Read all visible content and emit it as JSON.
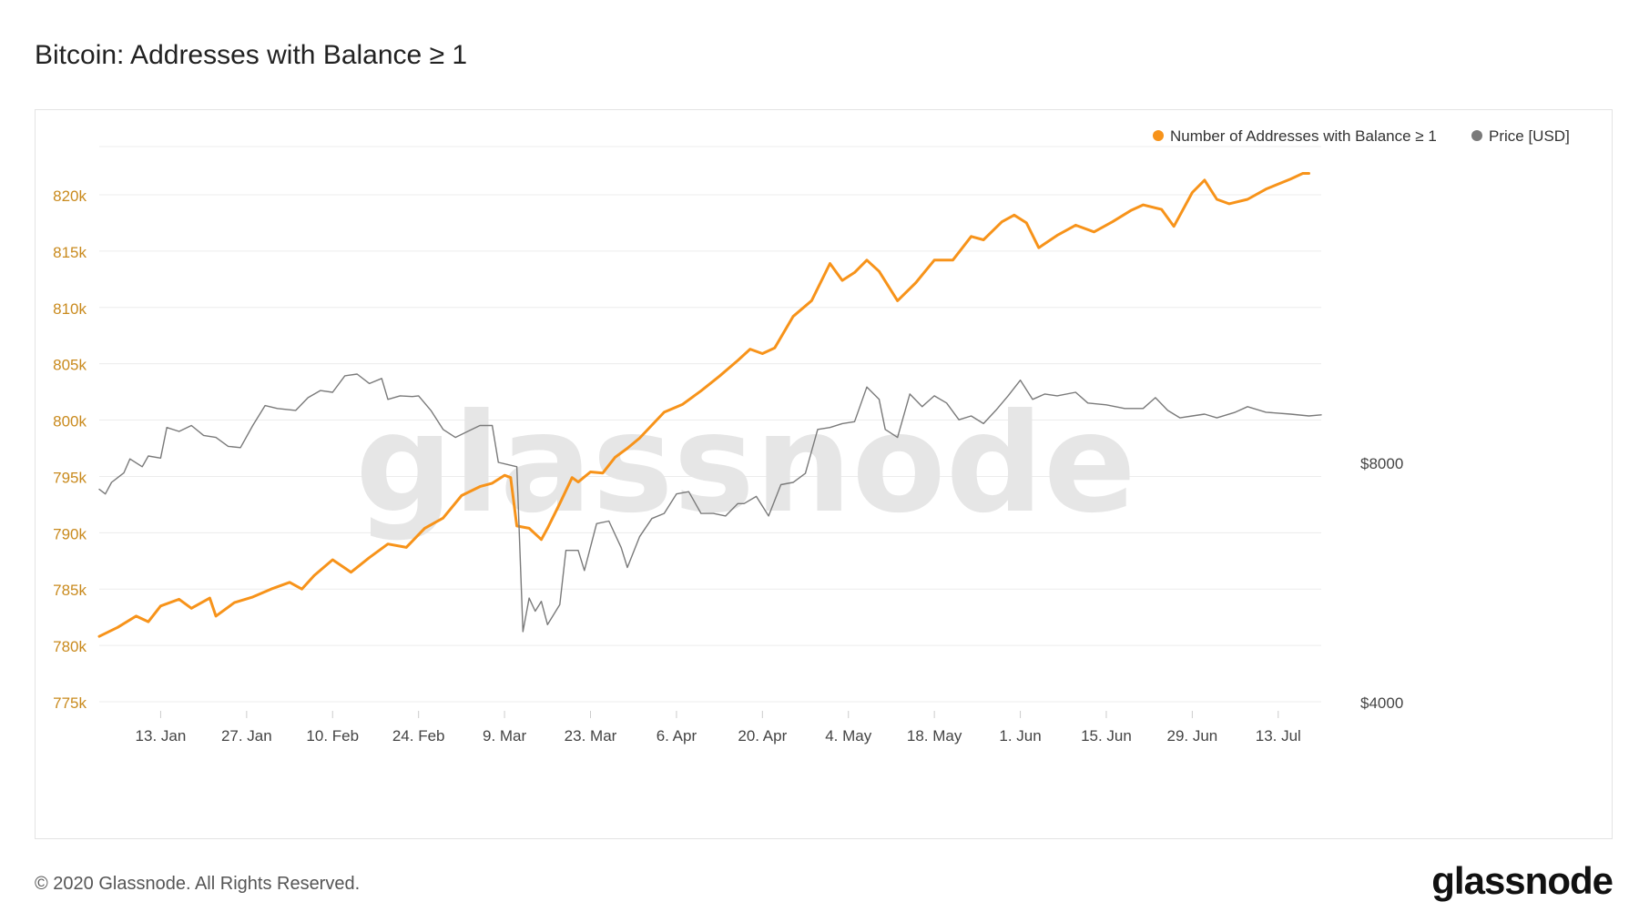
{
  "title": "Bitcoin: Addresses with Balance ≥ 1",
  "footer": {
    "copyright": "© 2020 Glassnode. All Rights Reserved.",
    "brand": "glassnode"
  },
  "watermark": "glassnode",
  "colors": {
    "addresses": "#f7931a",
    "price": "#7a7a7a",
    "left_axis_text": "#c98a1d",
    "grid": "#ececec",
    "watermark": "#e6e6e6"
  },
  "chart_data": {
    "type": "line",
    "title": "Bitcoin: Addresses with Balance ≥ 1",
    "x_range": [
      "2020-01-03",
      "2020-07-20"
    ],
    "x_ticks": [
      {
        "date": "2020-01-13",
        "label": "13. Jan"
      },
      {
        "date": "2020-01-27",
        "label": "27. Jan"
      },
      {
        "date": "2020-02-10",
        "label": "10. Feb"
      },
      {
        "date": "2020-02-24",
        "label": "24. Feb"
      },
      {
        "date": "2020-03-09",
        "label": "9. Mar"
      },
      {
        "date": "2020-03-23",
        "label": "23. Mar"
      },
      {
        "date": "2020-04-06",
        "label": "6. Apr"
      },
      {
        "date": "2020-04-20",
        "label": "20. Apr"
      },
      {
        "date": "2020-05-04",
        "label": "4. May"
      },
      {
        "date": "2020-05-18",
        "label": "18. May"
      },
      {
        "date": "2020-06-01",
        "label": "1. Jun"
      },
      {
        "date": "2020-06-15",
        "label": "15. Jun"
      },
      {
        "date": "2020-06-29",
        "label": "29. Jun"
      },
      {
        "date": "2020-07-13",
        "label": "13. Jul"
      }
    ],
    "y_left": {
      "ylim": [
        775000,
        825000
      ],
      "ticks": [
        {
          "value": 775000,
          "label": "775k"
        },
        {
          "value": 780000,
          "label": "780k"
        },
        {
          "value": 785000,
          "label": "785k"
        },
        {
          "value": 790000,
          "label": "790k"
        },
        {
          "value": 795000,
          "label": "795k"
        },
        {
          "value": 800000,
          "label": "800k"
        },
        {
          "value": 805000,
          "label": "805k"
        },
        {
          "value": 810000,
          "label": "810k"
        },
        {
          "value": 815000,
          "label": "815k"
        },
        {
          "value": 820000,
          "label": "820k"
        }
      ]
    },
    "y_right": {
      "scale": "log",
      "ticks": [
        {
          "value": 4000,
          "label": "$4000"
        },
        {
          "value": 8000,
          "label": "$8000"
        }
      ]
    },
    "legend_position": "top-right",
    "grid": true,
    "series": [
      {
        "name": "Number of Addresses with Balance ≥ 1",
        "axis": "left",
        "points": [
          [
            "2020-01-03",
            780800
          ],
          [
            "2020-01-06",
            781600
          ],
          [
            "2020-01-09",
            782600
          ],
          [
            "2020-01-11",
            782100
          ],
          [
            "2020-01-13",
            783500
          ],
          [
            "2020-01-16",
            784100
          ],
          [
            "2020-01-18",
            783300
          ],
          [
            "2020-01-21",
            784200
          ],
          [
            "2020-01-22",
            782600
          ],
          [
            "2020-01-25",
            783800
          ],
          [
            "2020-01-28",
            784300
          ],
          [
            "2020-01-31",
            785000
          ],
          [
            "2020-02-03",
            785600
          ],
          [
            "2020-02-05",
            785000
          ],
          [
            "2020-02-07",
            786200
          ],
          [
            "2020-02-10",
            787600
          ],
          [
            "2020-02-13",
            786500
          ],
          [
            "2020-02-16",
            787800
          ],
          [
            "2020-02-19",
            789000
          ],
          [
            "2020-02-22",
            788700
          ],
          [
            "2020-02-25",
            790400
          ],
          [
            "2020-02-28",
            791300
          ],
          [
            "2020-03-02",
            793300
          ],
          [
            "2020-03-05",
            794100
          ],
          [
            "2020-03-07",
            794400
          ],
          [
            "2020-03-09",
            795100
          ],
          [
            "2020-03-10",
            794900
          ],
          [
            "2020-03-11",
            790600
          ],
          [
            "2020-03-13",
            790400
          ],
          [
            "2020-03-15",
            789400
          ],
          [
            "2020-03-16",
            790400
          ],
          [
            "2020-03-18",
            792600
          ],
          [
            "2020-03-20",
            794900
          ],
          [
            "2020-03-21",
            794500
          ],
          [
            "2020-03-23",
            795400
          ],
          [
            "2020-03-25",
            795300
          ],
          [
            "2020-03-27",
            796700
          ],
          [
            "2020-03-29",
            797500
          ],
          [
            "2020-03-31",
            798400
          ],
          [
            "2020-04-04",
            800700
          ],
          [
            "2020-04-07",
            801400
          ],
          [
            "2020-04-10",
            802600
          ],
          [
            "2020-04-13",
            803900
          ],
          [
            "2020-04-16",
            805300
          ],
          [
            "2020-04-18",
            806300
          ],
          [
            "2020-04-20",
            805900
          ],
          [
            "2020-04-22",
            806400
          ],
          [
            "2020-04-25",
            809200
          ],
          [
            "2020-04-28",
            810600
          ],
          [
            "2020-05-01",
            813900
          ],
          [
            "2020-05-03",
            812400
          ],
          [
            "2020-05-05",
            813100
          ],
          [
            "2020-05-07",
            814200
          ],
          [
            "2020-05-09",
            813200
          ],
          [
            "2020-05-12",
            810600
          ],
          [
            "2020-05-15",
            812200
          ],
          [
            "2020-05-18",
            814200
          ],
          [
            "2020-05-21",
            814200
          ],
          [
            "2020-05-24",
            816300
          ],
          [
            "2020-05-26",
            816000
          ],
          [
            "2020-05-29",
            817600
          ],
          [
            "2020-05-31",
            818200
          ],
          [
            "2020-06-02",
            817500
          ],
          [
            "2020-06-04",
            815300
          ],
          [
            "2020-06-07",
            816400
          ],
          [
            "2020-06-10",
            817300
          ],
          [
            "2020-06-13",
            816700
          ],
          [
            "2020-06-16",
            817600
          ],
          [
            "2020-06-19",
            818600
          ],
          [
            "2020-06-21",
            819100
          ],
          [
            "2020-06-24",
            818700
          ],
          [
            "2020-06-26",
            817200
          ],
          [
            "2020-06-29",
            820200
          ],
          [
            "2020-07-01",
            821300
          ],
          [
            "2020-07-03",
            819600
          ],
          [
            "2020-07-05",
            819200
          ],
          [
            "2020-07-08",
            819600
          ],
          [
            "2020-07-11",
            820500
          ],
          [
            "2020-07-15",
            821400
          ],
          [
            "2020-07-17",
            821900
          ],
          [
            "2020-07-18",
            821900
          ]
        ]
      },
      {
        "name": "Price [USD]",
        "axis": "right",
        "points": [
          [
            "2020-01-03",
            7400
          ],
          [
            "2020-01-04",
            7300
          ],
          [
            "2020-01-05",
            7550
          ],
          [
            "2020-01-07",
            7760
          ],
          [
            "2020-01-08",
            8080
          ],
          [
            "2020-01-10",
            7900
          ],
          [
            "2020-01-11",
            8150
          ],
          [
            "2020-01-13",
            8100
          ],
          [
            "2020-01-14",
            8850
          ],
          [
            "2020-01-16",
            8750
          ],
          [
            "2020-01-18",
            8900
          ],
          [
            "2020-01-20",
            8650
          ],
          [
            "2020-01-22",
            8600
          ],
          [
            "2020-01-24",
            8380
          ],
          [
            "2020-01-26",
            8350
          ],
          [
            "2020-01-28",
            8900
          ],
          [
            "2020-01-30",
            9430
          ],
          [
            "2020-02-01",
            9350
          ],
          [
            "2020-02-04",
            9300
          ],
          [
            "2020-02-06",
            9650
          ],
          [
            "2020-02-08",
            9850
          ],
          [
            "2020-02-10",
            9800
          ],
          [
            "2020-02-12",
            10280
          ],
          [
            "2020-02-14",
            10330
          ],
          [
            "2020-02-16",
            10050
          ],
          [
            "2020-02-18",
            10200
          ],
          [
            "2020-02-19",
            9600
          ],
          [
            "2020-02-21",
            9700
          ],
          [
            "2020-02-23",
            9680
          ],
          [
            "2020-02-24",
            9700
          ],
          [
            "2020-02-26",
            9300
          ],
          [
            "2020-02-28",
            8800
          ],
          [
            "2020-03-01",
            8600
          ],
          [
            "2020-03-03",
            8750
          ],
          [
            "2020-03-05",
            8900
          ],
          [
            "2020-03-07",
            8900
          ],
          [
            "2020-03-08",
            8000
          ],
          [
            "2020-03-11",
            7900
          ],
          [
            "2020-03-12",
            4900
          ],
          [
            "2020-03-13",
            5400
          ],
          [
            "2020-03-14",
            5200
          ],
          [
            "2020-03-15",
            5350
          ],
          [
            "2020-03-16",
            5000
          ],
          [
            "2020-03-18",
            5300
          ],
          [
            "2020-03-19",
            6200
          ],
          [
            "2020-03-21",
            6200
          ],
          [
            "2020-03-22",
            5850
          ],
          [
            "2020-03-24",
            6700
          ],
          [
            "2020-03-26",
            6750
          ],
          [
            "2020-03-28",
            6250
          ],
          [
            "2020-03-29",
            5900
          ],
          [
            "2020-03-31",
            6450
          ],
          [
            "2020-04-02",
            6800
          ],
          [
            "2020-04-04",
            6900
          ],
          [
            "2020-04-06",
            7300
          ],
          [
            "2020-04-08",
            7350
          ],
          [
            "2020-04-10",
            6900
          ],
          [
            "2020-04-12",
            6900
          ],
          [
            "2020-04-14",
            6850
          ],
          [
            "2020-04-16",
            7100
          ],
          [
            "2020-04-17",
            7100
          ],
          [
            "2020-04-19",
            7250
          ],
          [
            "2020-04-21",
            6850
          ],
          [
            "2020-04-23",
            7500
          ],
          [
            "2020-04-25",
            7550
          ],
          [
            "2020-04-27",
            7750
          ],
          [
            "2020-04-29",
            8800
          ],
          [
            "2020-05-01",
            8850
          ],
          [
            "2020-05-03",
            8950
          ],
          [
            "2020-05-05",
            9000
          ],
          [
            "2020-05-07",
            9950
          ],
          [
            "2020-05-09",
            9600
          ],
          [
            "2020-05-10",
            8800
          ],
          [
            "2020-05-12",
            8600
          ],
          [
            "2020-05-14",
            9750
          ],
          [
            "2020-05-16",
            9400
          ],
          [
            "2020-05-18",
            9700
          ],
          [
            "2020-05-20",
            9500
          ],
          [
            "2020-05-22",
            9050
          ],
          [
            "2020-05-24",
            9150
          ],
          [
            "2020-05-26",
            8950
          ],
          [
            "2020-05-28",
            9300
          ],
          [
            "2020-05-30",
            9700
          ],
          [
            "2020-06-01",
            10150
          ],
          [
            "2020-06-03",
            9600
          ],
          [
            "2020-06-05",
            9750
          ],
          [
            "2020-06-07",
            9700
          ],
          [
            "2020-06-10",
            9800
          ],
          [
            "2020-06-12",
            9500
          ],
          [
            "2020-06-15",
            9450
          ],
          [
            "2020-06-18",
            9350
          ],
          [
            "2020-06-21",
            9350
          ],
          [
            "2020-06-23",
            9650
          ],
          [
            "2020-06-25",
            9300
          ],
          [
            "2020-06-27",
            9100
          ],
          [
            "2020-06-29",
            9150
          ],
          [
            "2020-07-01",
            9200
          ],
          [
            "2020-07-03",
            9100
          ],
          [
            "2020-07-06",
            9250
          ],
          [
            "2020-07-08",
            9400
          ],
          [
            "2020-07-11",
            9250
          ],
          [
            "2020-07-15",
            9200
          ],
          [
            "2020-07-18",
            9150
          ],
          [
            "2020-07-20",
            9180
          ]
        ]
      }
    ]
  }
}
